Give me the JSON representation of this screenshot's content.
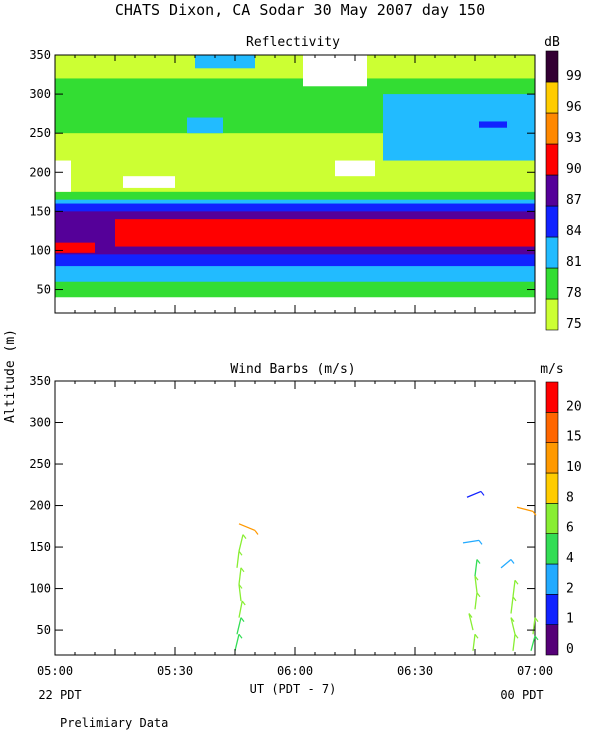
{
  "title": "CHATS Dixon, CA  Sodar  30 May 2007  day 150",
  "ylabel": "Altitude  (m)",
  "xlabel": "UT  (PDT - 7)",
  "left_time_label": "22 PDT",
  "right_time_label": "00 PDT",
  "footer": "Prelimiary Data",
  "x_ticks": [
    "05:00",
    "05:30",
    "06:00",
    "06:30",
    "07:00"
  ],
  "y_ticks": [
    "50",
    "100",
    "150",
    "200",
    "250",
    "300",
    "350"
  ],
  "chart_data": [
    {
      "type": "heatmap",
      "title": "Reflectivity",
      "colorbar_unit": "dB",
      "xlim": [
        0,
        120
      ],
      "ylim": [
        20,
        350
      ],
      "colorbar": {
        "labels": [
          "75",
          "78",
          "81",
          "84",
          "87",
          "90",
          "93",
          "96",
          "99"
        ],
        "colors": [
          "#ccff33",
          "#33dd33",
          "#22bbff",
          "#1122ff",
          "#550099",
          "#ff0000",
          "#ff8800",
          "#ffcc00",
          "#330033"
        ]
      },
      "bands": [
        {
          "level": "#ccff33",
          "x": [
            0,
            120
          ],
          "y": [
            165,
            350
          ]
        },
        {
          "level": "#33dd33",
          "x": [
            0,
            120
          ],
          "y": [
            40,
            175
          ]
        },
        {
          "level": "#22bbff",
          "x": [
            0,
            120
          ],
          "y": [
            60,
            165
          ]
        },
        {
          "level": "#1122ff",
          "x": [
            0,
            120
          ],
          "y": [
            80,
            160
          ]
        },
        {
          "level": "#550099",
          "x": [
            0,
            120
          ],
          "y": [
            95,
            150
          ]
        },
        {
          "level": "#ff0000",
          "x": [
            15,
            120
          ],
          "y": [
            105,
            140
          ]
        },
        {
          "level": "#ff0000",
          "x": [
            0,
            10
          ],
          "y": [
            97,
            110
          ]
        }
      ],
      "patches": [
        {
          "level": "#33dd33",
          "x": [
            0,
            120
          ],
          "y": [
            250,
            320
          ]
        },
        {
          "level": "#22bbff",
          "x": [
            33,
            42
          ],
          "y": [
            250,
            270
          ]
        },
        {
          "level": "#22bbff",
          "x": [
            82,
            120
          ],
          "y": [
            215,
            300
          ]
        },
        {
          "level": "#22bbff",
          "x": [
            35,
            50
          ],
          "y": [
            333,
            350
          ]
        },
        {
          "level": "#1122ff",
          "x": [
            106,
            113
          ],
          "y": [
            257,
            265
          ]
        },
        {
          "level": "#ffffff",
          "x": [
            0,
            4
          ],
          "y": [
            175,
            215
          ]
        },
        {
          "level": "#ffffff",
          "x": [
            17,
            30
          ],
          "y": [
            180,
            195
          ]
        },
        {
          "level": "#ffffff",
          "x": [
            70,
            80
          ],
          "y": [
            195,
            215
          ]
        },
        {
          "level": "#ffffff",
          "x": [
            62,
            78
          ],
          "y": [
            310,
            350
          ]
        }
      ]
    },
    {
      "type": "scatter",
      "title": "Wind Barbs (m/s)",
      "colorbar_unit": "m/s",
      "xlim": [
        0,
        120
      ],
      "ylim": [
        20,
        350
      ],
      "colorbar": {
        "labels": [
          "0",
          "1",
          "2",
          "4",
          "6",
          "8",
          "10",
          "15",
          "20"
        ],
        "colors": [
          "#550077",
          "#1122ff",
          "#22aaff",
          "#33dd55",
          "#88ee33",
          "#ffcc00",
          "#ff9900",
          "#ff6600",
          "#ff0000"
        ]
      },
      "barbs": [
        {
          "x": 45.0,
          "y": 25,
          "dx": 1.0,
          "dy": 20,
          "color": "#33dd55"
        },
        {
          "x": 45.5,
          "y": 45,
          "dx": 1.0,
          "dy": 20,
          "color": "#33dd55"
        },
        {
          "x": 46.0,
          "y": 65,
          "dx": 0.8,
          "dy": 20,
          "color": "#88ee33"
        },
        {
          "x": 46.5,
          "y": 85,
          "dx": -0.5,
          "dy": 20,
          "color": "#88ee33"
        },
        {
          "x": 46.0,
          "y": 105,
          "dx": 0.5,
          "dy": 20,
          "color": "#88ee33"
        },
        {
          "x": 45.5,
          "y": 125,
          "dx": 0.5,
          "dy": 20,
          "color": "#88ee33"
        },
        {
          "x": 46.0,
          "y": 145,
          "dx": 1.0,
          "dy": 20,
          "color": "#88ee33"
        },
        {
          "x": 46.0,
          "y": 178,
          "dx": 4.0,
          "dy": -8,
          "color": "#ff9900"
        },
        {
          "x": 104.5,
          "y": 25,
          "dx": 0.5,
          "dy": 20,
          "color": "#88ee33"
        },
        {
          "x": 104.5,
          "y": 50,
          "dx": -1.0,
          "dy": 20,
          "color": "#88ee33"
        },
        {
          "x": 105.0,
          "y": 75,
          "dx": 0.5,
          "dy": 20,
          "color": "#88ee33"
        },
        {
          "x": 105.5,
          "y": 95,
          "dx": -0.5,
          "dy": 20,
          "color": "#88ee33"
        },
        {
          "x": 105.0,
          "y": 115,
          "dx": 0.5,
          "dy": 20,
          "color": "#33dd55"
        },
        {
          "x": 102.0,
          "y": 155,
          "dx": 4.0,
          "dy": 3,
          "color": "#22aaff"
        },
        {
          "x": 103.0,
          "y": 210,
          "dx": 3.5,
          "dy": 7,
          "color": "#1122ff"
        },
        {
          "x": 114.5,
          "y": 25,
          "dx": 0.5,
          "dy": 20,
          "color": "#88ee33"
        },
        {
          "x": 115.0,
          "y": 45,
          "dx": -1.0,
          "dy": 20,
          "color": "#88ee33"
        },
        {
          "x": 114.0,
          "y": 70,
          "dx": 0.5,
          "dy": 20,
          "color": "#88ee33"
        },
        {
          "x": 114.5,
          "y": 90,
          "dx": 0.5,
          "dy": 20,
          "color": "#88ee33"
        },
        {
          "x": 111.5,
          "y": 125,
          "dx": 2.5,
          "dy": 10,
          "color": "#22aaff"
        },
        {
          "x": 115.5,
          "y": 198,
          "dx": 4.0,
          "dy": -5,
          "color": "#ff9900"
        },
        {
          "x": 119.0,
          "y": 25,
          "dx": 1.0,
          "dy": 18,
          "color": "#33dd55"
        },
        {
          "x": 119.5,
          "y": 45,
          "dx": 0.5,
          "dy": 20,
          "color": "#88ee33"
        }
      ]
    }
  ]
}
